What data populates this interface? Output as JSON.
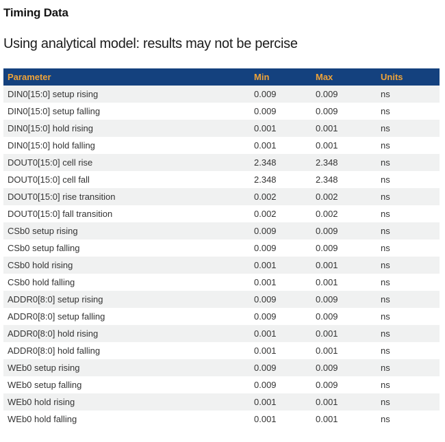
{
  "page": {
    "title": "Timing Data",
    "subtitle": "Using analytical model: results may not be percise"
  },
  "colors": {
    "header_bg": "#14417e",
    "header_text": "#efa338",
    "row_stripe": "#f0f1f1",
    "row_text": "#333333"
  },
  "table": {
    "columns": [
      "Parameter",
      "Min",
      "Max",
      "Units"
    ],
    "rows": [
      [
        "DIN0[15:0] setup rising",
        "0.009",
        "0.009",
        "ns"
      ],
      [
        "DIN0[15:0] setup falling",
        "0.009",
        "0.009",
        "ns"
      ],
      [
        "DIN0[15:0] hold rising",
        "0.001",
        "0.001",
        "ns"
      ],
      [
        "DIN0[15:0] hold falling",
        "0.001",
        "0.001",
        "ns"
      ],
      [
        "DOUT0[15:0] cell rise",
        "2.348",
        "2.348",
        "ns"
      ],
      [
        "DOUT0[15:0] cell fall",
        "2.348",
        "2.348",
        "ns"
      ],
      [
        "DOUT0[15:0] rise transition",
        "0.002",
        "0.002",
        "ns"
      ],
      [
        "DOUT0[15:0] fall transition",
        "0.002",
        "0.002",
        "ns"
      ],
      [
        "CSb0 setup rising",
        "0.009",
        "0.009",
        "ns"
      ],
      [
        "CSb0 setup falling",
        "0.009",
        "0.009",
        "ns"
      ],
      [
        "CSb0 hold rising",
        "0.001",
        "0.001",
        "ns"
      ],
      [
        "CSb0 hold falling",
        "0.001",
        "0.001",
        "ns"
      ],
      [
        "ADDR0[8:0] setup rising",
        "0.009",
        "0.009",
        "ns"
      ],
      [
        "ADDR0[8:0] setup falling",
        "0.009",
        "0.009",
        "ns"
      ],
      [
        "ADDR0[8:0] hold rising",
        "0.001",
        "0.001",
        "ns"
      ],
      [
        "ADDR0[8:0] hold falling",
        "0.001",
        "0.001",
        "ns"
      ],
      [
        "WEb0 setup rising",
        "0.009",
        "0.009",
        "ns"
      ],
      [
        "WEb0 setup falling",
        "0.009",
        "0.009",
        "ns"
      ],
      [
        "WEb0 hold rising",
        "0.001",
        "0.001",
        "ns"
      ],
      [
        "WEb0 hold falling",
        "0.001",
        "0.001",
        "ns"
      ]
    ]
  }
}
